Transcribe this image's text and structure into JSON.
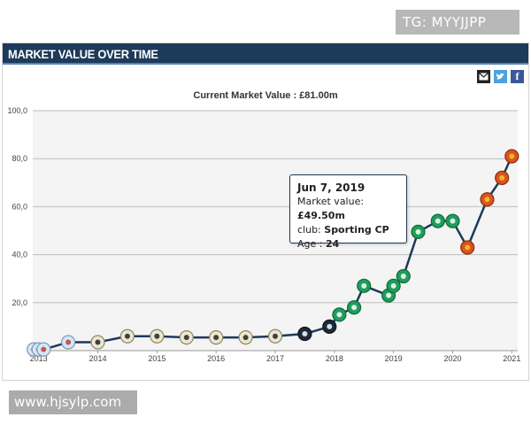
{
  "watermarks": {
    "top": "TG: MYYJJPP",
    "bottom": "www.hjsylp.com"
  },
  "panel": {
    "title": "MARKET VALUE OVER TIME"
  },
  "share": {
    "email_icon": "envelope-icon",
    "twitter_icon": "twitter-icon",
    "facebook_icon": "facebook-icon",
    "facebook_glyph": "f"
  },
  "colors": {
    "header_bg": "#1d3a5a",
    "line": "#1d3a5a",
    "udinese": "#e8e4d0",
    "sporting": "#1e9a5a",
    "manutd": "#d9541e",
    "portugal": "#c8e0f0"
  },
  "chart_data": {
    "type": "line",
    "title": "Current Market Value : £81.00m",
    "xlabel": "",
    "ylabel": "",
    "ylim": [
      0,
      100
    ],
    "yticks": [
      "100,0",
      "80,0",
      "60,0",
      "40,0",
      "20,0"
    ],
    "xticks": [
      "2013",
      "2014",
      "2015",
      "2016",
      "2017",
      "2018",
      "2019",
      "2020",
      "2021"
    ],
    "grid": true,
    "series": [
      {
        "x": [
          "2012-12",
          "2013-01",
          "2013-02",
          "2013-07",
          "2014-01",
          "2014-07",
          "2015-01",
          "2015-07",
          "2016-01",
          "2016-07",
          "2017-01",
          "2017-07",
          "2017-12",
          "2018-02",
          "2018-05",
          "2018-07",
          "2018-12",
          "2019-01",
          "2019-03",
          "2019-06",
          "2019-10",
          "2020-01",
          "2020-04",
          "2020-08",
          "2020-11",
          "2021-01"
        ],
        "values": [
          0.5,
          0.5,
          0.5,
          3.5,
          3.5,
          6.0,
          6.0,
          5.5,
          5.5,
          5.5,
          6.0,
          7.0,
          10.0,
          15.0,
          18.0,
          27.0,
          23.0,
          27.0,
          31.0,
          49.5,
          54.0,
          54.0,
          43.0,
          63.0,
          72.0,
          81.0
        ],
        "clubs": [
          "portugal",
          "portugal",
          "portugal",
          "portugal",
          "udinese",
          "udinese",
          "udinese",
          "udinese",
          "udinese",
          "udinese",
          "udinese",
          "dark",
          "dark",
          "sporting",
          "sporting",
          "sporting",
          "sporting",
          "sporting",
          "sporting",
          "sporting",
          "sporting",
          "sporting",
          "manutd",
          "manutd",
          "manutd",
          "manutd"
        ]
      }
    ],
    "tooltip": {
      "date": "Jun 7, 2019",
      "market_value_label": "Market value:",
      "market_value": "£49.50m",
      "club_label": "club:",
      "club": "Sporting CP",
      "age_label": "Age :",
      "age": "24"
    }
  }
}
